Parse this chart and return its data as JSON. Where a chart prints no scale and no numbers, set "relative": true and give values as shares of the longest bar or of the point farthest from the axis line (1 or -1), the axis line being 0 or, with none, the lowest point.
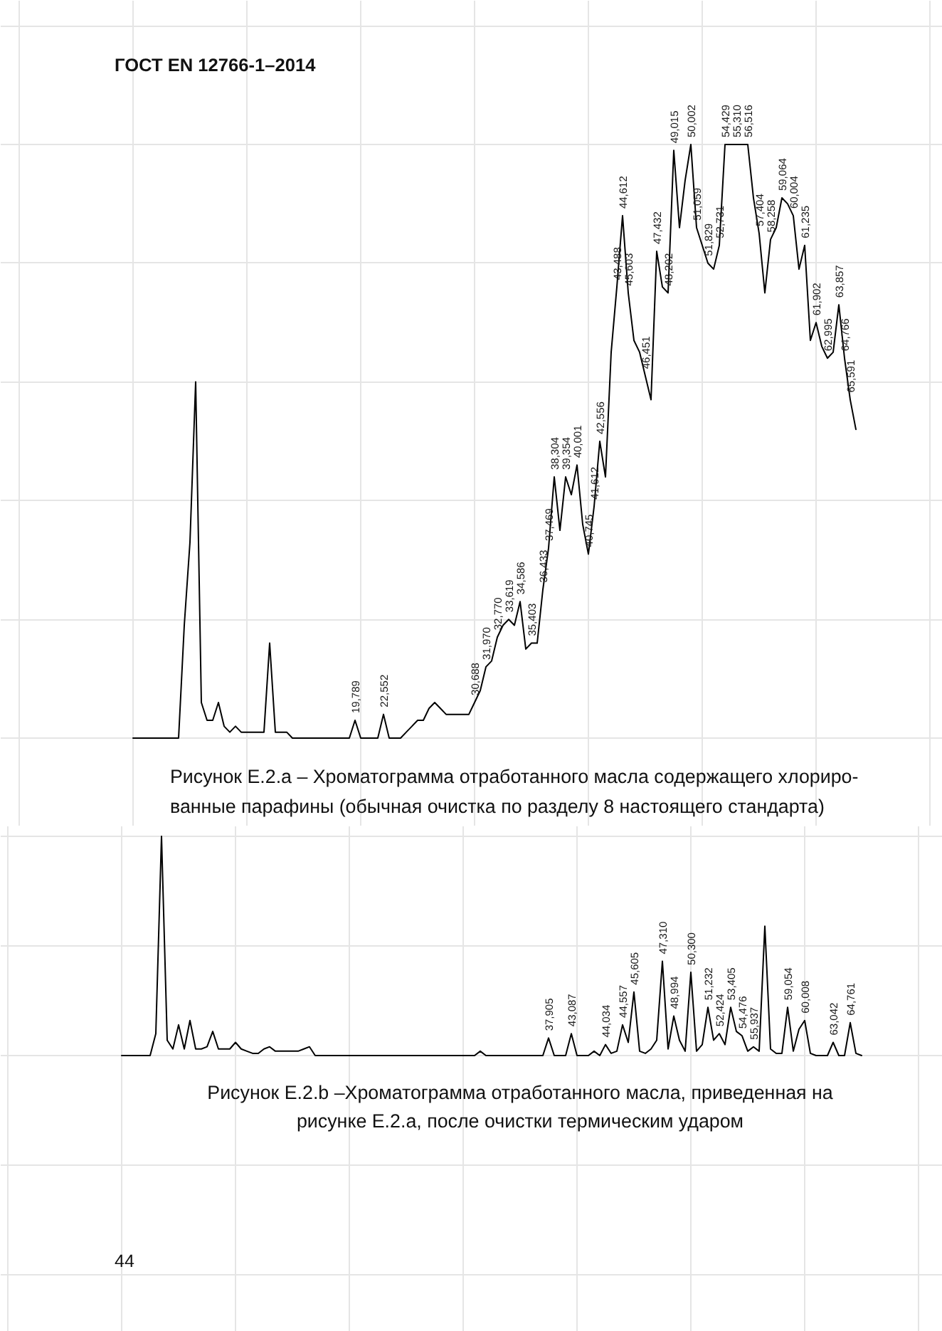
{
  "chart_data": [
    {
      "type": "line",
      "title": "Рисунок Е.2.a – Хроматограмма отработанного масла содержащего хлориро-\nванные парафины (обычная очистка по разделу 8 настоящего стандарта)",
      "annotations": [
        "ГОСТ EN 12766-1–2014"
      ],
      "relative": true,
      "color": "#000000",
      "categories": [
        null,
        null,
        null,
        null,
        null,
        null,
        null,
        null,
        null,
        null,
        null,
        null,
        null,
        null,
        null,
        null,
        null,
        null,
        null,
        null,
        null,
        null,
        null,
        null,
        null,
        null,
        null,
        null,
        null,
        null,
        null,
        null,
        null,
        null,
        null,
        null,
        null,
        null,
        null,
        "19,789",
        null,
        null,
        null,
        null,
        "22,552",
        null,
        null,
        null,
        null,
        null,
        null,
        null,
        null,
        null,
        null,
        null,
        null,
        null,
        null,
        null,
        "30,688",
        null,
        "31,970",
        null,
        "32,770",
        null,
        "33,619",
        null,
        "34,586",
        null,
        "35,403",
        null,
        "36,433",
        "37,469",
        "38,304",
        null,
        "39,354",
        null,
        "40,001",
        null,
        "40,745",
        "41,612",
        "42,556",
        null,
        null,
        "43,488",
        "44,612",
        "45,603",
        null,
        null,
        "46,451",
        null,
        "47,432",
        null,
        "48,202",
        "49,015",
        null,
        null,
        "50,002",
        "51,059",
        null,
        "51,829",
        null,
        "52,731",
        "54,429",
        null,
        "55,310",
        null,
        "56,516",
        null,
        "57,404",
        null,
        "58,258",
        null,
        "59,064",
        null,
        "60,004",
        null,
        "61,235",
        null,
        "61,902",
        null,
        "62,995",
        null,
        "63,857",
        "64,766",
        "65,591",
        null
      ],
      "values": [
        0,
        0,
        0,
        0,
        0,
        0,
        0,
        0,
        0,
        0.19,
        0.33,
        0.6,
        0.06,
        0.03,
        0.03,
        0.06,
        0.02,
        0.01,
        0.02,
        0.01,
        0.01,
        0.01,
        0.01,
        0.01,
        0.16,
        0.01,
        0.01,
        0.01,
        0,
        0,
        0,
        0,
        0,
        0,
        0,
        0,
        0,
        0,
        0,
        0.03,
        0,
        0,
        0,
        0,
        0.04,
        0,
        0,
        0,
        0.01,
        0.02,
        0.03,
        0.03,
        0.05,
        0.06,
        0.05,
        0.04,
        0.04,
        0.04,
        0.04,
        0.04,
        0.06,
        0.08,
        0.12,
        0.13,
        0.17,
        0.19,
        0.2,
        0.19,
        0.23,
        0.15,
        0.16,
        0.16,
        0.25,
        0.32,
        0.44,
        0.35,
        0.44,
        0.41,
        0.46,
        0.36,
        0.31,
        0.39,
        0.5,
        0.44,
        0.65,
        0.76,
        0.88,
        0.75,
        0.67,
        0.65,
        0.61,
        0.57,
        0.82,
        0.76,
        0.75,
        0.99,
        0.86,
        0.94,
        1,
        0.86,
        0.83,
        0.8,
        0.79,
        0.83,
        1,
        1,
        1,
        1,
        1,
        0.91,
        0.85,
        0.75,
        0.84,
        0.86,
        0.91,
        0.9,
        0.88,
        0.79,
        0.83,
        0.67,
        0.7,
        0.66,
        0.64,
        0.65,
        0.73,
        0.64,
        0.57,
        0.52
      ]
    },
    {
      "type": "line",
      "title": "Рисунок Е.2.b –Хроматограмма отработанного масла, приведенная на\nрисунке Е.2.a, после очистки термическим ударом",
      "annotations": [
        "44"
      ],
      "relative": true,
      "color": "#000000",
      "categories": [
        null,
        null,
        null,
        null,
        null,
        null,
        null,
        null,
        null,
        null,
        null,
        null,
        null,
        null,
        null,
        null,
        null,
        null,
        null,
        null,
        null,
        null,
        null,
        null,
        null,
        null,
        null,
        null,
        null,
        null,
        null,
        null,
        null,
        null,
        null,
        null,
        null,
        null,
        null,
        null,
        null,
        null,
        null,
        null,
        null,
        null,
        null,
        null,
        null,
        null,
        null,
        null,
        null,
        null,
        null,
        null,
        null,
        null,
        null,
        null,
        null,
        null,
        null,
        null,
        null,
        null,
        null,
        null,
        null,
        null,
        null,
        null,
        null,
        null,
        null,
        "37,905",
        null,
        null,
        null,
        "43,087",
        null,
        null,
        null,
        null,
        null,
        "44,034",
        null,
        null,
        "44,557",
        null,
        "45,605",
        null,
        null,
        null,
        null,
        "47,310",
        null,
        "48,994",
        null,
        null,
        "50,300",
        null,
        null,
        "51,232",
        null,
        "52,424",
        null,
        "53,405",
        null,
        "54,476",
        null,
        "55,937",
        null,
        null,
        null,
        null,
        null,
        "59,054",
        null,
        null,
        "60,008",
        null,
        null,
        null,
        null,
        "63,042",
        null,
        null,
        "64,761",
        null,
        null
      ],
      "values": [
        0,
        0,
        0,
        0,
        0,
        0,
        0.1,
        1,
        0.07,
        0.03,
        0.14,
        0.03,
        0.16,
        0.03,
        0.03,
        0.04,
        0.11,
        0.03,
        0.03,
        0.03,
        0.06,
        0.03,
        0.02,
        0.01,
        0.01,
        0.03,
        0.04,
        0.02,
        0.02,
        0.02,
        0.02,
        0.02,
        0.03,
        0.04,
        0,
        0,
        0,
        0,
        0,
        0,
        0,
        0,
        0,
        0,
        0,
        0,
        0,
        0,
        0,
        0,
        0,
        0,
        0,
        0,
        0,
        0,
        0,
        0,
        0,
        0,
        0,
        0,
        0,
        0.02,
        0,
        0,
        0,
        0,
        0,
        0,
        0,
        0,
        0,
        0,
        0,
        0.08,
        0,
        0,
        0,
        0.1,
        0,
        0,
        0,
        0.02,
        0,
        0.05,
        0.01,
        0.02,
        0.14,
        0.06,
        0.29,
        0.02,
        0.01,
        0.03,
        0.07,
        0.43,
        0.03,
        0.18,
        0.07,
        0.02,
        0.38,
        0.02,
        0.05,
        0.22,
        0.07,
        0.1,
        0.05,
        0.22,
        0.11,
        0.09,
        0.02,
        0.04,
        0.02,
        0.59,
        0.03,
        0.01,
        0.01,
        0.22,
        0.02,
        0.12,
        0.16,
        0.01,
        0,
        0,
        0,
        0.06,
        0,
        0,
        0.15,
        0.01,
        0
      ]
    }
  ]
}
